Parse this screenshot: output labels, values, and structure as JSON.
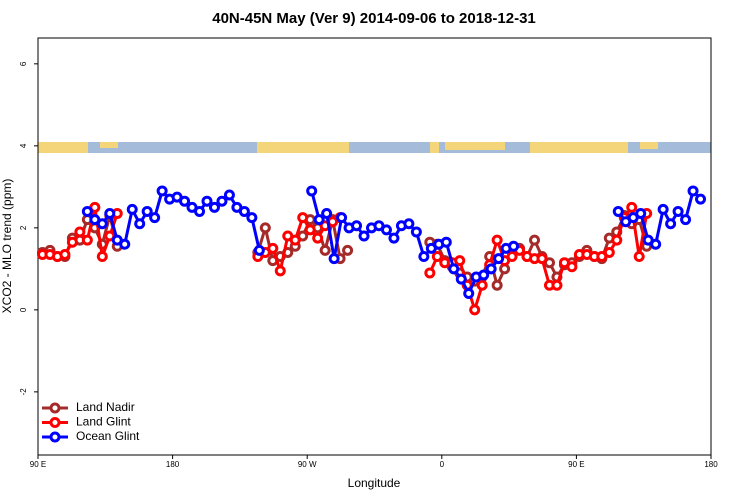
{
  "chart_data": {
    "type": "line",
    "title": "40N-45N May (Ver 9)   2014-09-06 to 2018-12-31",
    "x_label": "Longitude",
    "y_label": "XCO2 - MLO trend (ppm)",
    "xlim": [
      90,
      540
    ],
    "ylim": [
      -3.54,
      6.63
    ],
    "xticks": [
      {
        "value": 90,
        "label": "90 E"
      },
      180,
      {
        "value": 270,
        "label": "90 W"
      },
      {
        "value": 360,
        "label": "0"
      },
      {
        "value": 450,
        "label": "90 E"
      },
      180
    ],
    "yticks": [
      -2,
      0,
      2,
      4,
      6
    ],
    "legend": "bottom-left",
    "series": [
      {
        "name": "Land Nadir",
        "color": "#a52a2a",
        "x": [
          93,
          98,
          103,
          108,
          113,
          118,
          123,
          128,
          133,
          138,
          143,
          190,
          237,
          242,
          247,
          252,
          257,
          262,
          267,
          272,
          277,
          282,
          287,
          292,
          297,
          325,
          352,
          357,
          362,
          367,
          372,
          377,
          382,
          387,
          392,
          397,
          402,
          407,
          412,
          417,
          422,
          427,
          432,
          437,
          442,
          447,
          452,
          457,
          462,
          467,
          472,
          477,
          482,
          487,
          492,
          497
        ],
        "values": [
          1.4,
          1.45,
          1.3,
          1.3,
          1.75,
          1.7,
          2.2,
          2.0,
          1.6,
          2.3,
          1.55,
          null,
          1.4,
          2.0,
          1.2,
          1.3,
          1.4,
          1.55,
          1.8,
          2.2,
          2.0,
          1.45,
          2.2,
          1.25,
          1.45,
          null,
          1.65,
          1.6,
          1.2,
          1.05,
          0.9,
          0.8,
          0.7,
          0.8,
          1.3,
          0.6,
          1.0,
          1.5,
          1.5,
          1.3,
          1.7,
          1.3,
          1.15,
          0.8,
          1.1,
          1.15,
          1.3,
          1.45,
          1.3,
          1.25,
          1.75,
          1.9,
          2.3,
          2.1,
          2.2,
          1.55
        ]
      },
      {
        "name": "Land Glint",
        "color": "#ff0000",
        "x": [
          93,
          98,
          103,
          108,
          113,
          118,
          123,
          128,
          133,
          138,
          143,
          190,
          237,
          242,
          247,
          252,
          257,
          262,
          267,
          272,
          277,
          282,
          287,
          292,
          325,
          352,
          357,
          362,
          367,
          372,
          377,
          382,
          387,
          392,
          397,
          402,
          407,
          412,
          417,
          422,
          427,
          432,
          437,
          442,
          447,
          452,
          457,
          462,
          467,
          472,
          477,
          482,
          487,
          492,
          497
        ],
        "values": [
          1.35,
          1.35,
          1.3,
          1.35,
          1.65,
          1.9,
          1.7,
          2.5,
          1.3,
          1.8,
          2.35,
          null,
          1.3,
          1.4,
          1.5,
          0.95,
          1.8,
          1.7,
          2.25,
          1.95,
          1.75,
          2.05,
          2.15,
          2.25,
          null,
          0.9,
          1.3,
          1.15,
          1.15,
          1.2,
          0.6,
          0.0,
          0.6,
          1.1,
          1.7,
          1.2,
          1.3,
          1.45,
          1.3,
          1.25,
          1.25,
          0.6,
          0.6,
          1.15,
          1.05,
          1.35,
          1.35,
          1.3,
          1.3,
          1.4,
          1.7,
          2.25,
          2.5,
          1.3,
          2.35
        ]
      },
      {
        "name": "Ocean Glint",
        "color": "#0000ff",
        "x": [
          123,
          128,
          133,
          138,
          143,
          148,
          153,
          158,
          163,
          168,
          173,
          178,
          183,
          188,
          193,
          198,
          203,
          208,
          213,
          218,
          223,
          228,
          233,
          238,
          255,
          273,
          278,
          283,
          288,
          293,
          298,
          303,
          308,
          313,
          318,
          323,
          328,
          333,
          338,
          343,
          348,
          353,
          358,
          363,
          368,
          373,
          378,
          383,
          388,
          393,
          398,
          403,
          408,
          440,
          478,
          483,
          488,
          493,
          498,
          503,
          508,
          513,
          518,
          523,
          528,
          533
        ],
        "values": [
          2.4,
          2.2,
          2.1,
          2.35,
          1.7,
          1.6,
          2.45,
          2.1,
          2.4,
          2.25,
          2.9,
          2.7,
          2.75,
          2.65,
          2.5,
          2.4,
          2.65,
          2.5,
          2.65,
          2.8,
          2.5,
          2.4,
          2.25,
          1.45,
          null,
          2.9,
          2.2,
          2.35,
          1.25,
          2.25,
          2.0,
          2.05,
          1.8,
          2.0,
          2.05,
          1.95,
          1.75,
          2.05,
          2.1,
          1.9,
          1.3,
          1.5,
          1.6,
          1.65,
          1.0,
          0.75,
          0.4,
          0.8,
          0.85,
          1.0,
          1.25,
          1.5,
          1.55,
          null,
          2.4,
          2.15,
          2.25,
          2.35,
          1.7,
          1.6,
          2.45,
          2.1,
          2.4,
          2.2,
          2.9,
          2.7
        ]
      }
    ]
  }
}
